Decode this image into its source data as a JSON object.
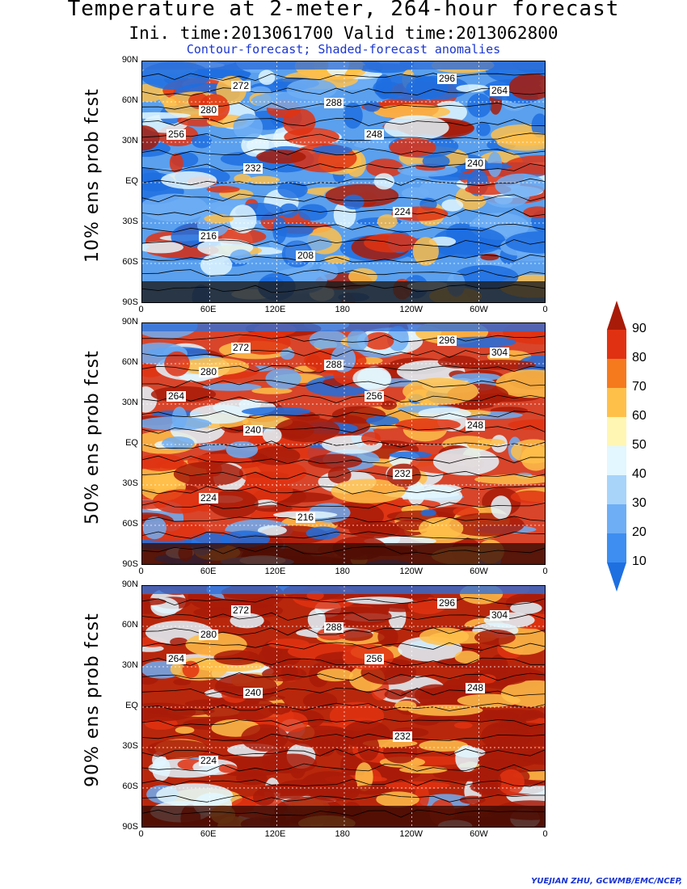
{
  "title": "Temperature at 2-meter, 264-hour forecast",
  "subtitle": "Ini. time:2013061700    Valid time:2013062800",
  "legend_note": "Contour-forecast; Shaded-forecast anomalies",
  "credit": "YUEJIAN ZHU, GCWMB/EMC/NCEP,",
  "lat_ticks": [
    "90N",
    "60N",
    "30N",
    "EQ",
    "30S",
    "60S",
    "90S"
  ],
  "lon_ticks": [
    "0",
    "60E",
    "120E",
    "180",
    "120W",
    "60W",
    "0"
  ],
  "panels": [
    {
      "label": "10% ens prob fcst",
      "contour_labels": [
        "272",
        "280",
        "288",
        "296",
        "264",
        "256",
        "248",
        "240",
        "232",
        "224",
        "216",
        "208"
      ]
    },
    {
      "label": "50% ens prob fcst",
      "contour_labels": [
        "272",
        "280",
        "288",
        "296",
        "304",
        "264",
        "256",
        "248",
        "240",
        "232",
        "224",
        "216"
      ]
    },
    {
      "label": "90% ens prob fcst",
      "contour_labels": [
        "272",
        "280",
        "288",
        "296",
        "304",
        "264",
        "256",
        "248",
        "240",
        "232",
        "224"
      ]
    }
  ],
  "colorbar": {
    "ticks": [
      "10",
      "20",
      "30",
      "40",
      "50",
      "60",
      "70",
      "80",
      "90"
    ],
    "colors": [
      "#1e6fe0",
      "#3d8ef0",
      "#6eaef5",
      "#a8d4fa",
      "#e2f7ff",
      "#fff6b3",
      "#ffc04a",
      "#f57a1e",
      "#e03212",
      "#a81b08"
    ]
  }
}
